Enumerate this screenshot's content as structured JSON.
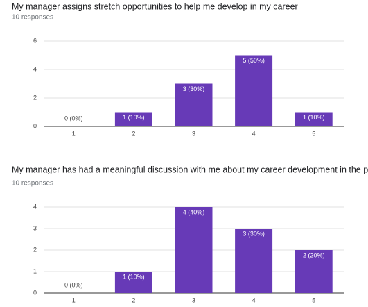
{
  "chart_data": [
    {
      "type": "bar",
      "title": "My manager assigns stretch opportunities to help me develop in my career",
      "subtitle": "10 responses",
      "categories": [
        "1",
        "2",
        "3",
        "4",
        "5"
      ],
      "values": [
        0,
        1,
        3,
        5,
        1
      ],
      "value_labels": [
        "0 (0%)",
        "1 (10%)",
        "3 (30%)",
        "5 (50%)",
        "1 (10%)"
      ],
      "color": "#673ab7",
      "ylim": [
        0,
        6
      ],
      "yticks": [
        0,
        2,
        4,
        6
      ],
      "grid": true
    },
    {
      "type": "bar",
      "title": "My manager has had a meaningful discussion with me about my career development in the past six months",
      "subtitle": "10 responses",
      "categories": [
        "1",
        "2",
        "3",
        "4",
        "5"
      ],
      "values": [
        0,
        1,
        4,
        3,
        2
      ],
      "value_labels": [
        "0 (0%)",
        "1 (10%)",
        "4 (40%)",
        "3 (30%)",
        "2 (20%)"
      ],
      "color": "#673ab7",
      "ylim": [
        0,
        4
      ],
      "yticks": [
        0,
        1,
        2,
        3,
        4
      ],
      "grid": true
    }
  ]
}
